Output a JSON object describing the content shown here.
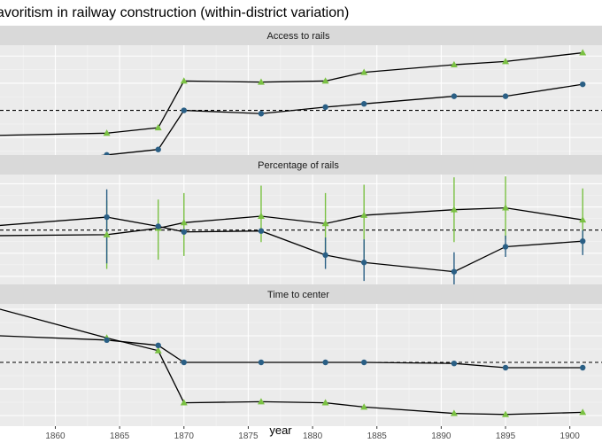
{
  "chart_data": {
    "type": "line",
    "title": "avoritism in railway construction (within-district variation)",
    "xlabel": "year",
    "ylabel": "",
    "x_ticks": [
      1860,
      1865,
      1870,
      1875,
      1880,
      1885,
      1890,
      1895,
      1900
    ],
    "xlim": [
      1855.7,
      1902.5
    ],
    "grid": true,
    "legend": "none",
    "colors": {
      "panel_bg": "#ebebeb",
      "strip_bg": "#d9d9d9",
      "grid_major": "#ffffff",
      "grid_minor": "#f5f5f5",
      "line": "#000000",
      "ref_line": "#000000",
      "circle_series": "#2a5f85",
      "triangle_series": "#7ac143"
    },
    "panels": [
      {
        "strip": "Access to rails",
        "ylim": [
          -0.55,
          0.6
        ],
        "ref_y": 0,
        "series": [
          {
            "marker": "triangle",
            "points": [
              {
                "x": 1855.7,
                "y": -0.23
              },
              {
                "x": 1864,
                "y": -0.21
              },
              {
                "x": 1868,
                "y": -0.16
              },
              {
                "x": 1870,
                "y": 0.27
              },
              {
                "x": 1876,
                "y": 0.26
              },
              {
                "x": 1881,
                "y": 0.27
              },
              {
                "x": 1884,
                "y": 0.35
              },
              {
                "x": 1891,
                "y": 0.42
              },
              {
                "x": 1895,
                "y": 0.45
              },
              {
                "x": 1901,
                "y": 0.53
              }
            ]
          },
          {
            "marker": "circle",
            "points": [
              {
                "x": 1855.7,
                "y": -0.52
              },
              {
                "x": 1864,
                "y": -0.41
              },
              {
                "x": 1868,
                "y": -0.36
              },
              {
                "x": 1870,
                "y": 0.0
              },
              {
                "x": 1876,
                "y": -0.03
              },
              {
                "x": 1881,
                "y": 0.03
              },
              {
                "x": 1884,
                "y": 0.06
              },
              {
                "x": 1891,
                "y": 0.13
              },
              {
                "x": 1895,
                "y": 0.13
              },
              {
                "x": 1901,
                "y": 0.24
              }
            ]
          }
        ]
      },
      {
        "strip": "Percentage of rails",
        "ylim": [
          -0.75,
          0.6
        ],
        "ref_y": 0,
        "series": [
          {
            "marker": "triangle",
            "points": [
              {
                "x": 1855.7,
                "y": -0.06
              },
              {
                "x": 1864,
                "y": -0.05,
                "lo": -0.42,
                "hi": 0.32
              },
              {
                "x": 1868,
                "y": 0.02,
                "lo": -0.32,
                "hi": 0.33
              },
              {
                "x": 1870,
                "y": 0.08,
                "lo": -0.28,
                "hi": 0.4
              },
              {
                "x": 1876,
                "y": 0.15,
                "lo": -0.13,
                "hi": 0.48
              },
              {
                "x": 1881,
                "y": 0.07,
                "lo": -0.3,
                "hi": 0.4
              },
              {
                "x": 1884,
                "y": 0.16,
                "lo": -0.3,
                "hi": 0.49
              },
              {
                "x": 1891,
                "y": 0.22,
                "lo": -0.13,
                "hi": 0.57
              },
              {
                "x": 1895,
                "y": 0.24,
                "lo": -0.1,
                "hi": 0.58
              },
              {
                "x": 1901,
                "y": 0.11,
                "lo": -0.22,
                "hi": 0.45
              }
            ]
          },
          {
            "marker": "circle",
            "points": [
              {
                "x": 1855.7,
                "y": 0.05
              },
              {
                "x": 1864,
                "y": 0.14,
                "lo": -0.36,
                "hi": 0.44
              },
              {
                "x": 1868,
                "y": 0.04
              },
              {
                "x": 1870,
                "y": -0.02
              },
              {
                "x": 1876,
                "y": -0.01
              },
              {
                "x": 1881,
                "y": -0.27,
                "lo": -0.42,
                "hi": -0.08
              },
              {
                "x": 1884,
                "y": -0.35,
                "lo": -0.55,
                "hi": -0.1
              },
              {
                "x": 1891,
                "y": -0.45,
                "lo": -0.68,
                "hi": -0.24
              },
              {
                "x": 1895,
                "y": -0.18,
                "lo": -0.29,
                "hi": -0.06
              },
              {
                "x": 1901,
                "y": -0.12,
                "lo": -0.27,
                "hi": 0.0
              }
            ]
          }
        ]
      },
      {
        "strip": "Time to center",
        "ylim": [
          -0.6,
          0.55
        ],
        "ref_y": 0,
        "series": [
          {
            "marker": "triangle",
            "points": [
              {
                "x": 1855.7,
                "y": 0.5
              },
              {
                "x": 1864,
                "y": 0.23
              },
              {
                "x": 1868,
                "y": 0.11
              },
              {
                "x": 1870,
                "y": -0.38
              },
              {
                "x": 1876,
                "y": -0.37
              },
              {
                "x": 1881,
                "y": -0.38
              },
              {
                "x": 1884,
                "y": -0.42
              },
              {
                "x": 1891,
                "y": -0.48
              },
              {
                "x": 1895,
                "y": -0.49
              },
              {
                "x": 1901,
                "y": -0.47
              }
            ]
          },
          {
            "marker": "circle",
            "points": [
              {
                "x": 1855.7,
                "y": 0.25
              },
              {
                "x": 1864,
                "y": 0.21
              },
              {
                "x": 1868,
                "y": 0.16
              },
              {
                "x": 1870,
                "y": 0.0
              },
              {
                "x": 1876,
                "y": 0.0
              },
              {
                "x": 1881,
                "y": 0.0
              },
              {
                "x": 1884,
                "y": 0.0
              },
              {
                "x": 1891,
                "y": -0.01
              },
              {
                "x": 1895,
                "y": -0.05
              },
              {
                "x": 1901,
                "y": -0.05
              }
            ]
          }
        ]
      }
    ]
  }
}
